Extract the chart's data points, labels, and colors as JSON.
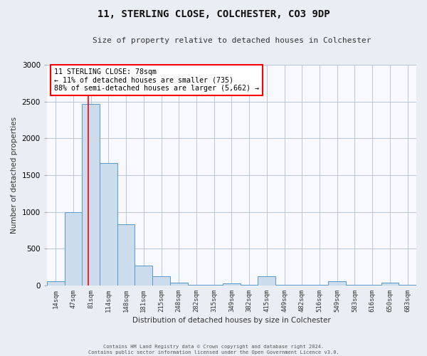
{
  "title": "11, STERLING CLOSE, COLCHESTER, CO3 9DP",
  "subtitle": "Size of property relative to detached houses in Colchester",
  "xlabel": "Distribution of detached houses by size in Colchester",
  "ylabel": "Number of detached properties",
  "bar_labels": [
    "14sqm",
    "47sqm",
    "81sqm",
    "114sqm",
    "148sqm",
    "181sqm",
    "215sqm",
    "248sqm",
    "282sqm",
    "315sqm",
    "349sqm",
    "382sqm",
    "415sqm",
    "449sqm",
    "482sqm",
    "516sqm",
    "549sqm",
    "583sqm",
    "616sqm",
    "650sqm",
    "683sqm"
  ],
  "bar_values": [
    60,
    1000,
    2470,
    1660,
    830,
    270,
    125,
    40,
    5,
    5,
    30,
    5,
    125,
    5,
    5,
    5,
    55,
    5,
    5,
    40,
    5
  ],
  "bar_color": "#ccdcec",
  "bar_edge_color": "#5599cc",
  "ylim": [
    0,
    3000
  ],
  "yticks": [
    0,
    500,
    1000,
    1500,
    2000,
    2500,
    3000
  ],
  "property_label": "11 STERLING CLOSE: 78sqm",
  "annotation_line1": "← 11% of detached houses are smaller (735)",
  "annotation_line2": "88% of semi-detached houses are larger (5,662) →",
  "red_line_x": 1.85,
  "footer_line1": "Contains HM Land Registry data © Crown copyright and database right 2024.",
  "footer_line2": "Contains public sector information licensed under the Open Government Licence v3.0.",
  "bg_color": "#e8eef4",
  "plot_bg": "#f8f8ff",
  "grid_color": "#b8c8d8",
  "title_fontsize": 10,
  "subtitle_fontsize": 8
}
